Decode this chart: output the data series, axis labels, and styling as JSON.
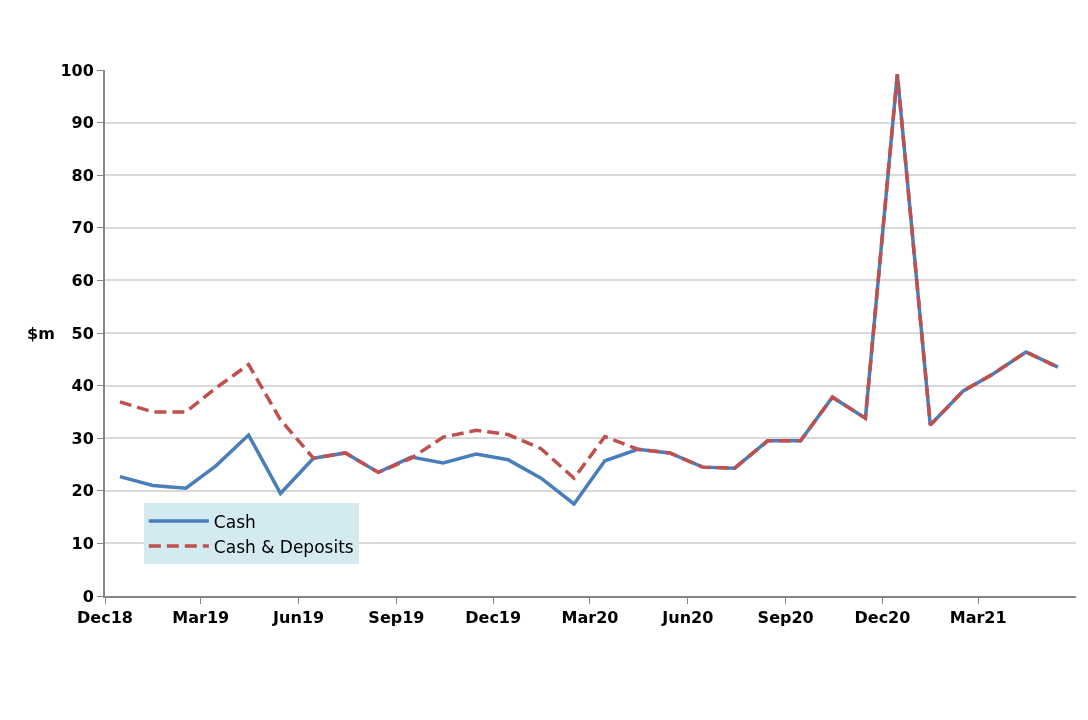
{
  "chart_data": {
    "type": "line",
    "ylabel": "$m",
    "x": [
      "2018-12-15",
      "2019-01-15",
      "2019-02-15",
      "2019-03-15",
      "2019-04-15",
      "2019-05-15",
      "2019-06-15",
      "2019-07-15",
      "2019-08-15",
      "2019-09-15",
      "2019-10-15",
      "2019-11-15",
      "2019-12-15",
      "2020-01-15",
      "2020-02-15",
      "2020-03-15",
      "2020-04-15",
      "2020-05-15",
      "2020-06-15",
      "2020-07-15",
      "2020-08-15",
      "2020-09-15",
      "2020-10-15",
      "2020-11-15",
      "2020-12-15",
      "2021-01-15",
      "2021-02-15",
      "2021-03-15",
      "2021-04-15",
      "2021-05-15"
    ],
    "series": [
      {
        "name": "Cash",
        "color": "#4a7ebb",
        "line_style": "solid",
        "values": [
          22.7,
          21,
          20.5,
          24.7,
          30.6,
          19.5,
          26.2,
          27.2,
          23.5,
          26.4,
          25.3,
          27.0,
          25.9,
          22.4,
          17.5,
          25.7,
          27.9,
          27.2,
          24.5,
          24.3,
          29.5,
          29.5,
          37.8,
          33.8,
          99.2,
          32.5,
          39.0,
          42.2,
          46.4,
          43.5
        ]
      },
      {
        "name": "Cash & Deposits",
        "color": "#c0504d",
        "line_style": "dashed",
        "values": [
          36.9,
          35,
          35,
          39.5,
          44,
          33.5,
          26.2,
          27.2,
          23.5,
          26.2,
          30.2,
          31.5,
          30.7,
          28,
          22.4,
          30.3,
          27.9,
          27.2,
          24.5,
          24.3,
          29.5,
          29.5,
          37.8,
          33.8,
          99.2,
          32.5,
          39.0,
          42.2,
          46.4,
          43.5
        ]
      }
    ],
    "xlim": [
      "2018-12-01",
      "2021-06-01"
    ],
    "xticks": [
      {
        "value": "2018-12-01",
        "label": "Dec18"
      },
      {
        "value": "2019-03-01",
        "label": "Mar19"
      },
      {
        "value": "2019-06-01",
        "label": "Jun19"
      },
      {
        "value": "2019-09-01",
        "label": "Sep19"
      },
      {
        "value": "2019-12-01",
        "label": "Dec19"
      },
      {
        "value": "2020-03-01",
        "label": "Mar20"
      },
      {
        "value": "2020-06-01",
        "label": "Jun20"
      },
      {
        "value": "2020-09-01",
        "label": "Sep20"
      },
      {
        "value": "2020-12-01",
        "label": "Dec20"
      },
      {
        "value": "2021-03-01",
        "label": "Mar21"
      }
    ],
    "ylim": [
      0,
      100
    ],
    "yticks": [
      0,
      10,
      20,
      30,
      40,
      50,
      60,
      70,
      80,
      90,
      100
    ],
    "grid": "y",
    "legend": "bottom left",
    "marker": "none"
  }
}
